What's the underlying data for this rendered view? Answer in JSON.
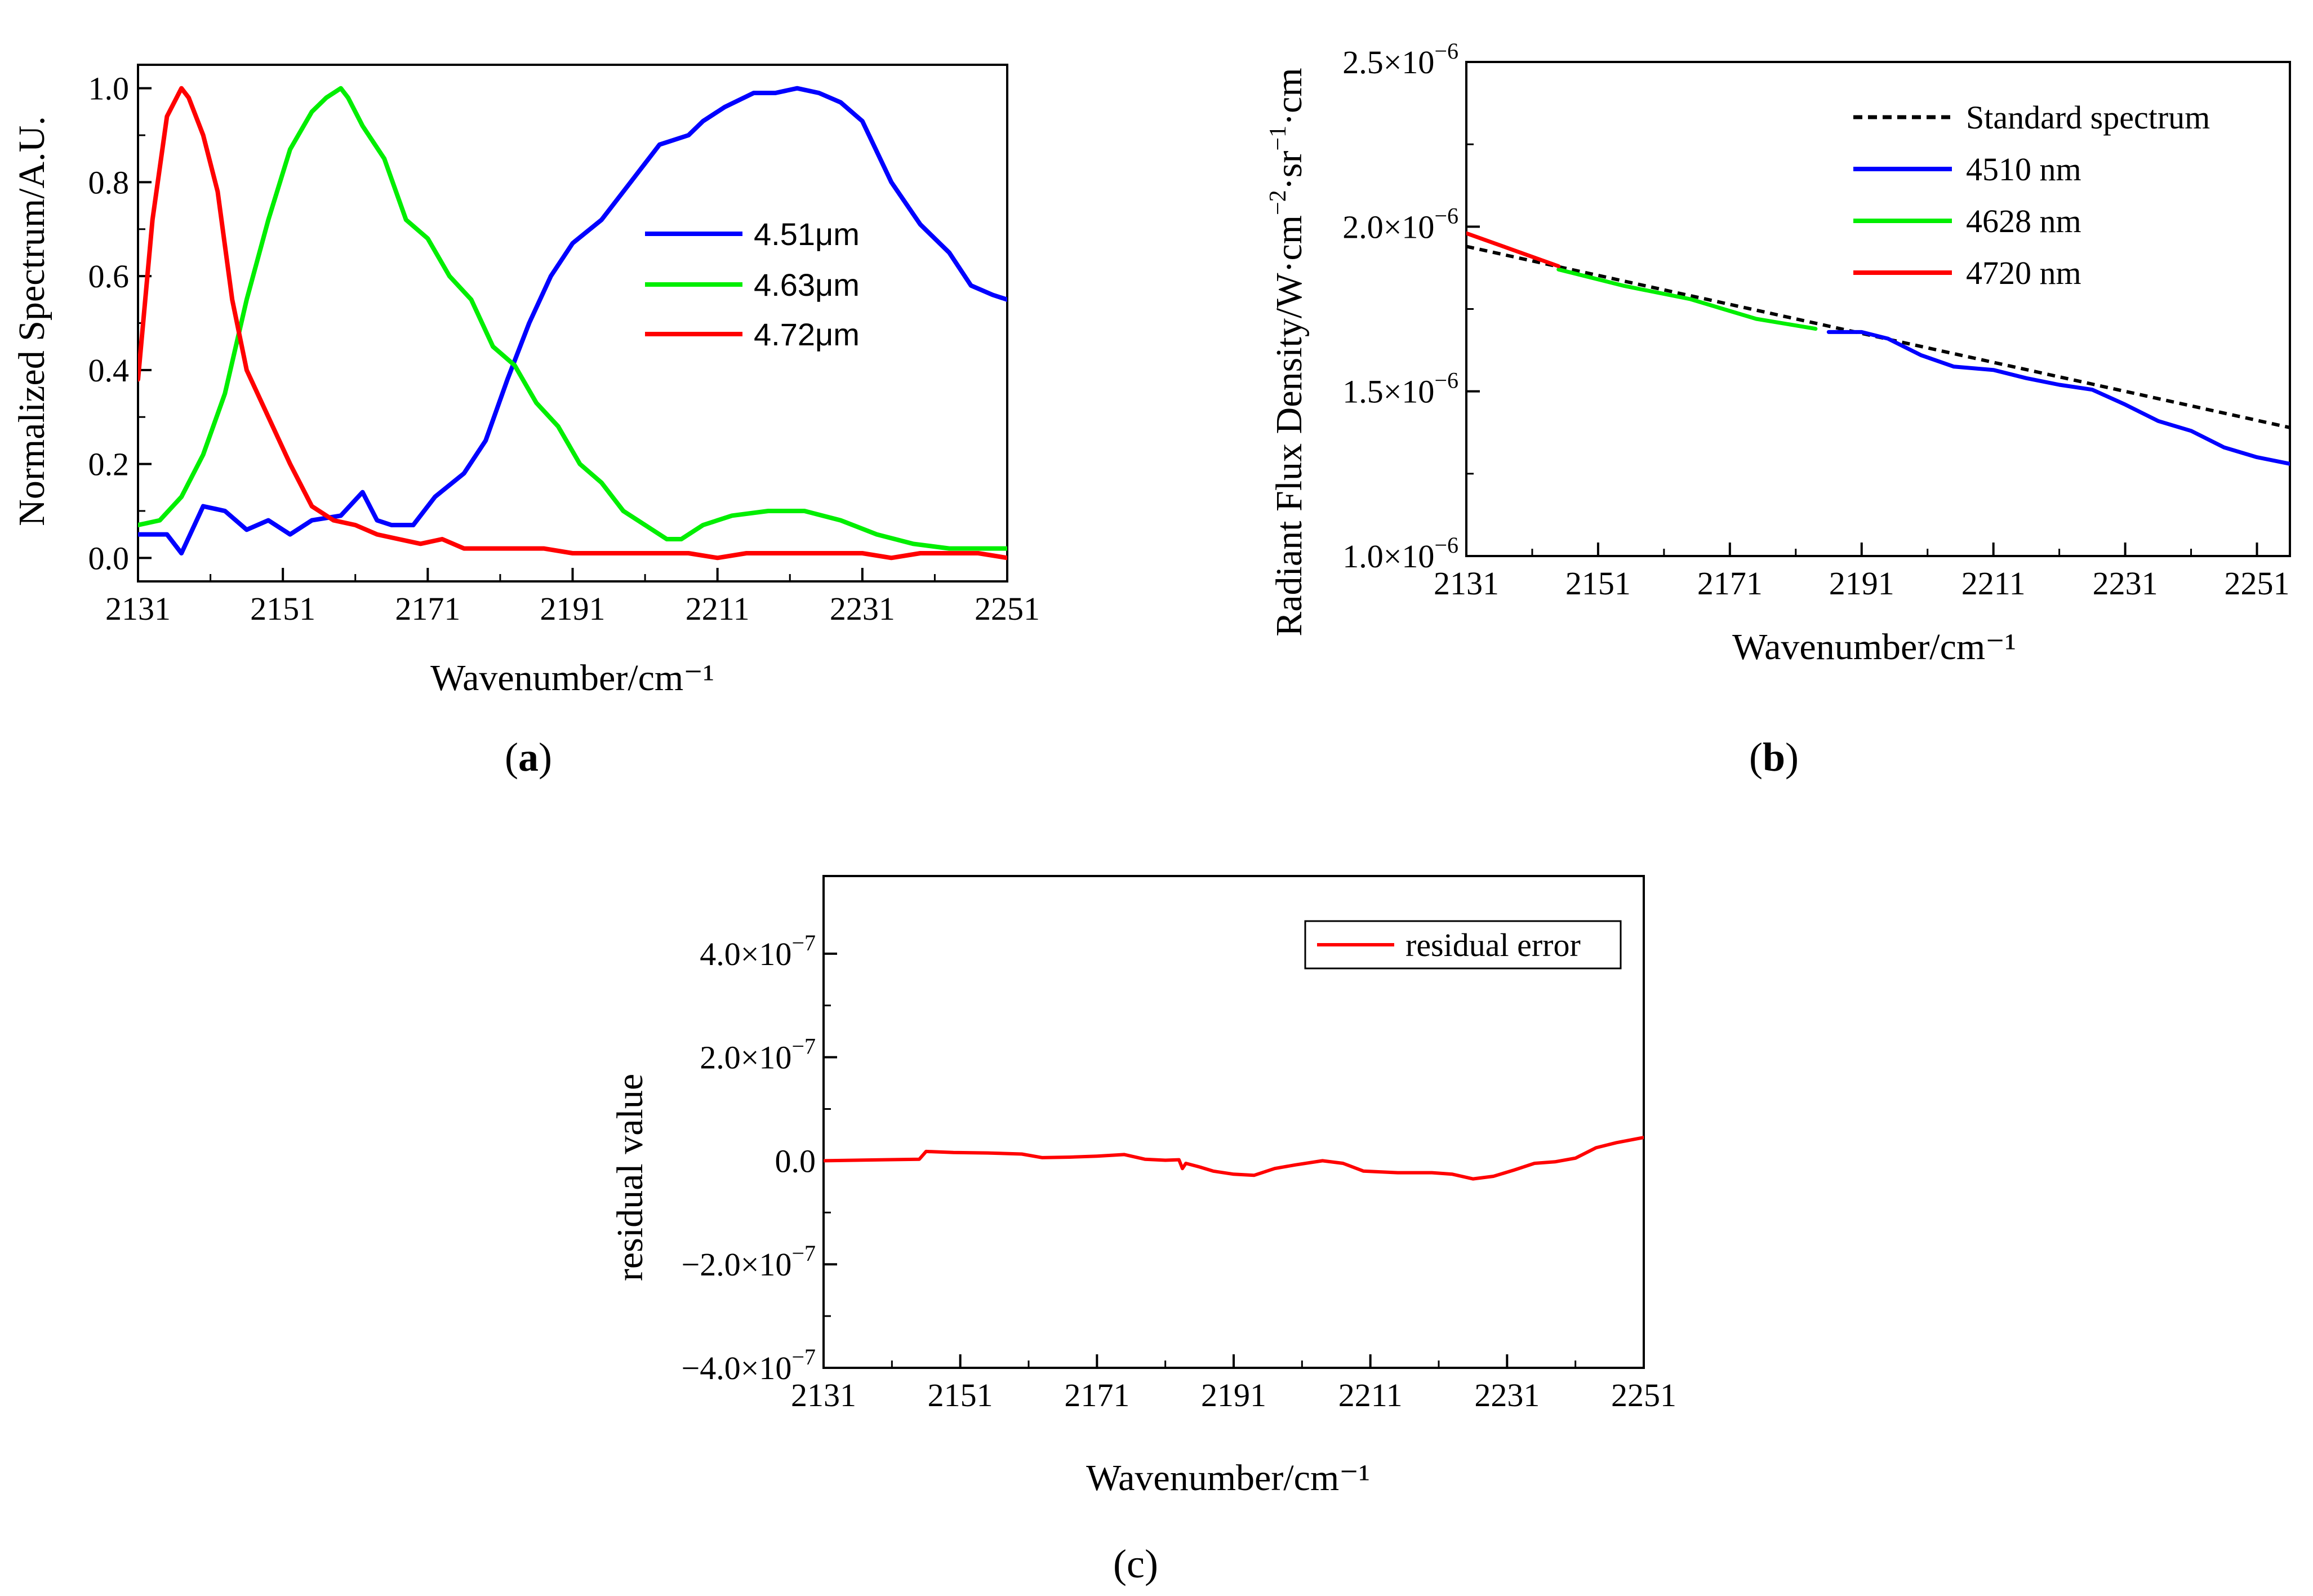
{
  "chart_data": [
    {
      "id": "a",
      "type": "line",
      "panel_label": "a",
      "xlabel": "Wavenumber/cm⁻¹",
      "ylabel": "Normalized Spectrum/A.U.",
      "xlim": [
        2131,
        2251
      ],
      "ylim": [
        -0.05,
        1.05
      ],
      "xticks": [
        "2131",
        "2151",
        "2171",
        "2191",
        "2211",
        "2231",
        "2251"
      ],
      "yticks": [
        "0.0",
        "0.2",
        "0.4",
        "0.6",
        "0.8",
        "1.0"
      ],
      "legend_position": "center-right",
      "series": [
        {
          "name": "4.51μm",
          "color": "#0000ff",
          "x": [
            2131,
            2135,
            2137,
            2140,
            2143,
            2146,
            2149,
            2152,
            2155,
            2159,
            2162,
            2164,
            2166,
            2169,
            2172,
            2176,
            2179,
            2182,
            2185,
            2188,
            2191,
            2195,
            2199,
            2203,
            2207,
            2209,
            2212,
            2216,
            2219,
            2222,
            2225,
            2228,
            2231,
            2235,
            2239,
            2243,
            2246,
            2249,
            2251
          ],
          "y": [
            0.05,
            0.05,
            0.01,
            0.11,
            0.1,
            0.06,
            0.08,
            0.05,
            0.08,
            0.09,
            0.14,
            0.08,
            0.07,
            0.07,
            0.13,
            0.18,
            0.25,
            0.38,
            0.5,
            0.6,
            0.67,
            0.72,
            0.8,
            0.88,
            0.9,
            0.93,
            0.96,
            0.99,
            0.99,
            1.0,
            0.99,
            0.97,
            0.93,
            0.8,
            0.71,
            0.65,
            0.58,
            0.56,
            0.55
          ]
        },
        {
          "name": "4.63μm",
          "color": "#00ee00",
          "x": [
            2131,
            2134,
            2137,
            2140,
            2143,
            2146,
            2149,
            2152,
            2155,
            2157,
            2159,
            2160,
            2162,
            2165,
            2168,
            2171,
            2174,
            2177,
            2180,
            2183,
            2186,
            2189,
            2192,
            2195,
            2198,
            2201,
            2204,
            2206,
            2209,
            2213,
            2218,
            2223,
            2228,
            2233,
            2238,
            2243,
            2248,
            2251
          ],
          "y": [
            0.07,
            0.08,
            0.13,
            0.22,
            0.35,
            0.55,
            0.72,
            0.87,
            0.95,
            0.98,
            1.0,
            0.98,
            0.92,
            0.85,
            0.72,
            0.68,
            0.6,
            0.55,
            0.45,
            0.41,
            0.33,
            0.28,
            0.2,
            0.16,
            0.1,
            0.07,
            0.04,
            0.04,
            0.07,
            0.09,
            0.1,
            0.1,
            0.08,
            0.05,
            0.03,
            0.02,
            0.02,
            0.02
          ]
        },
        {
          "name": "4.72μm",
          "color": "#ff0000",
          "x": [
            2131,
            2133,
            2135,
            2137,
            2138,
            2140,
            2142,
            2144,
            2146,
            2149,
            2152,
            2155,
            2158,
            2161,
            2164,
            2167,
            2170,
            2173,
            2176,
            2179,
            2183,
            2187,
            2191,
            2195,
            2199,
            2203,
            2207,
            2211,
            2215,
            2219,
            2223,
            2227,
            2231,
            2235,
            2239,
            2243,
            2247,
            2251
          ],
          "y": [
            0.38,
            0.72,
            0.94,
            1.0,
            0.98,
            0.9,
            0.78,
            0.55,
            0.4,
            0.3,
            0.2,
            0.11,
            0.08,
            0.07,
            0.05,
            0.04,
            0.03,
            0.04,
            0.02,
            0.02,
            0.02,
            0.02,
            0.01,
            0.01,
            0.01,
            0.01,
            0.01,
            0.0,
            0.01,
            0.01,
            0.01,
            0.01,
            0.01,
            0.0,
            0.01,
            0.01,
            0.01,
            0.0
          ]
        }
      ]
    },
    {
      "id": "b",
      "type": "line",
      "panel_label": "b",
      "xlabel": "Wavenumber/cm⁻¹",
      "ylabel_main": "Radiant Flux Density/W·cm",
      "ylabel_exp1": "−2",
      "ylabel_mid": "·sr",
      "ylabel_exp2": "−1",
      "ylabel_end": "·cm",
      "xlim": [
        2131,
        2256
      ],
      "ylim": [
        1e-06,
        2.5e-06
      ],
      "xticks": [
        "2131",
        "2151",
        "2171",
        "2191",
        "2211",
        "2231",
        "2251"
      ],
      "yticks": [
        {
          "value": 1e-06,
          "mantissa": "1.0×10",
          "exp": "−6"
        },
        {
          "value": 1.5e-06,
          "mantissa": "1.5×10",
          "exp": "−6"
        },
        {
          "value": 2e-06,
          "mantissa": "2.0×10",
          "exp": "−6"
        },
        {
          "value": 2.5e-06,
          "mantissa": "2.5×10",
          "exp": "−6"
        }
      ],
      "legend_position": "top-right",
      "series": [
        {
          "name": "Standard spectrum",
          "color": "#000000",
          "dashed": true,
          "x": [
            2131,
            2256
          ],
          "y": [
            1.94e-06,
            1.39e-06
          ]
        },
        {
          "name": "4510 nm",
          "color": "#0000ff",
          "x": [
            2186,
            2191,
            2195,
            2200,
            2205,
            2211,
            2216,
            2221,
            2226,
            2231,
            2236,
            2241,
            2246,
            2251,
            2256
          ],
          "y": [
            1.68e-06,
            1.68e-06,
            1.66e-06,
            1.61e-06,
            1.575e-06,
            1.565e-06,
            1.54e-06,
            1.52e-06,
            1.505e-06,
            1.46e-06,
            1.41e-06,
            1.38e-06,
            1.33e-06,
            1.3e-06,
            1.28e-06
          ]
        },
        {
          "name": "4628 nm",
          "color": "#00ee00",
          "x": [
            2145,
            2155,
            2165,
            2175,
            2184
          ],
          "y": [
            1.87e-06,
            1.82e-06,
            1.78e-06,
            1.72e-06,
            1.69e-06
          ]
        },
        {
          "name": "4720 nm",
          "color": "#ff0000",
          "x": [
            2131,
            2138,
            2145
          ],
          "y": [
            1.98e-06,
            1.93e-06,
            1.88e-06
          ]
        }
      ]
    },
    {
      "id": "c",
      "type": "line",
      "panel_label": "c",
      "xlabel": "Wavenumber/cm⁻¹",
      "ylabel": "residual value",
      "xlim": [
        2131,
        2251
      ],
      "ylim": [
        -4e-07,
        5.5e-07
      ],
      "xticks": [
        "2131",
        "2151",
        "2171",
        "2191",
        "2211",
        "2231",
        "2251"
      ],
      "yticks": [
        {
          "value": -4e-07,
          "mantissa": "−4.0×10",
          "exp": "−7"
        },
        {
          "value": -2e-07,
          "mantissa": "−2.0×10",
          "exp": "−7"
        },
        {
          "value": 0,
          "mantissa": "0.0",
          "exp": ""
        },
        {
          "value": 2e-07,
          "mantissa": "2.0×10",
          "exp": "−7"
        },
        {
          "value": 4e-07,
          "mantissa": "4.0×10",
          "exp": "−7"
        }
      ],
      "legend_position": "top-right",
      "series": [
        {
          "name": "residual error",
          "color": "#ff0000",
          "x": [
            2131,
            2140,
            2145,
            2146,
            2150,
            2155,
            2160,
            2163,
            2167,
            2171,
            2175,
            2178,
            2181,
            2183,
            2183.5,
            2184,
            2186,
            2188,
            2191,
            2194,
            2197,
            2200,
            2204,
            2207,
            2210,
            2215,
            2220,
            2223,
            2226,
            2229,
            2232,
            2235,
            2238,
            2241,
            2244,
            2247,
            2251
          ],
          "y": [
            0.0,
            2e-09,
            3e-09,
            1.8e-08,
            1.6e-08,
            1.5e-08,
            1.3e-08,
            6e-09,
            7e-09,
            9e-09,
            1.2e-08,
            3e-09,
            1e-09,
            2e-09,
            -1.5e-08,
            -5e-09,
            -1.2e-08,
            -2e-08,
            -2.6e-08,
            -2.8e-08,
            -1.5e-08,
            -8e-09,
            0.0,
            -5e-09,
            -2e-08,
            -2.3e-08,
            -2.3e-08,
            -2.6e-08,
            -3.5e-08,
            -3e-08,
            -1.8e-08,
            -5e-09,
            -2e-09,
            5e-09,
            2.5e-08,
            3.5e-08,
            4.5e-08
          ]
        }
      ]
    }
  ]
}
